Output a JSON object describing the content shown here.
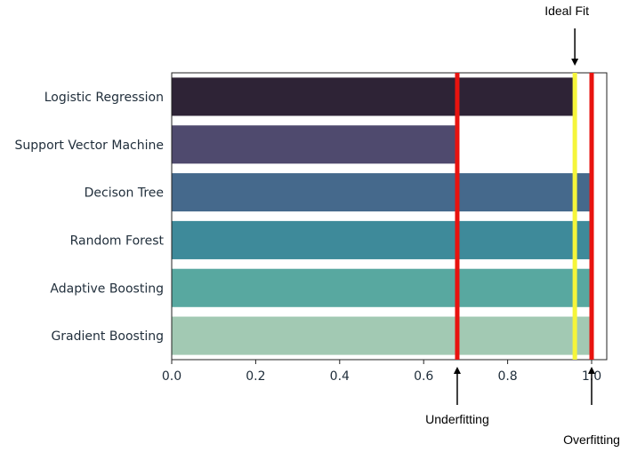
{
  "chart_data": {
    "type": "bar",
    "orientation": "horizontal",
    "categories": [
      "Logistic Regression",
      "Support Vector Machine",
      "Decison Tree",
      "Random Forest",
      "Adaptive Boosting",
      "Gradient Boosting"
    ],
    "values": [
      0.96,
      0.68,
      1.0,
      1.0,
      1.0,
      1.0
    ],
    "colors": [
      "#2e2336",
      "#4f4a6e",
      "#45698c",
      "#3e8a9a",
      "#58a8a0",
      "#a2c9b3"
    ],
    "xlim": [
      0,
      1.05
    ],
    "xticks": [
      "0.0",
      "0.2",
      "0.4",
      "0.6",
      "0.8",
      "1.0"
    ],
    "xtick_values": [
      0.0,
      0.2,
      0.4,
      0.6,
      0.8,
      1.0
    ],
    "title": "",
    "xlabel": "",
    "ylabel": "",
    "grid": false,
    "reference_lines": [
      {
        "value": 0.68,
        "color": "#e8130f"
      },
      {
        "value": 0.96,
        "color": "#f5f53a"
      },
      {
        "value": 1.0,
        "color": "#e8130f"
      }
    ],
    "annotations": [
      {
        "text": "Ideal Fit",
        "x_value": 0.96,
        "position": "top"
      },
      {
        "text": "Underfitting",
        "x_value": 0.68,
        "position": "bottom"
      },
      {
        "text": "Overfitting",
        "x_value": 1.0,
        "position": "bottom"
      }
    ]
  }
}
